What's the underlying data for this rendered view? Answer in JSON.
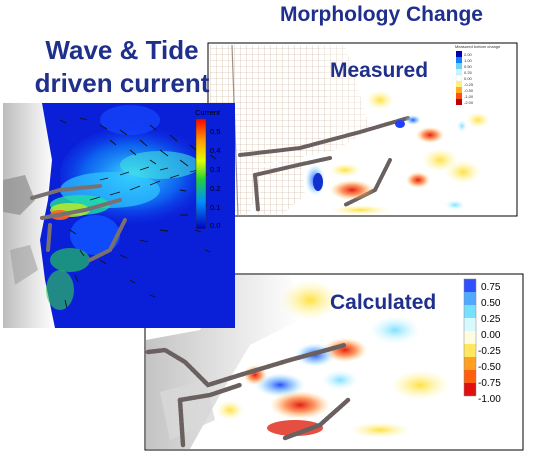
{
  "title": "Morphology Change",
  "wave_panel": {
    "line1": "Wave & Tide",
    "line2": "driven current",
    "colorbar_title": "Current",
    "colorbar_ticks": [
      "0.5",
      "0.4",
      "0.3",
      "0.2",
      "0.1",
      "0.0"
    ]
  },
  "measured_panel": {
    "label": "Measured",
    "legend_header": "Measured bottom change",
    "legend_ticks": [
      "2.00",
      "1.00",
      "0.50",
      "0.25",
      "0.00",
      "-0.25",
      "-0.50",
      "-1.00",
      "-2.00"
    ]
  },
  "calculated_panel": {
    "label": "Calculated",
    "legend_ticks": [
      "0.75",
      "0.50",
      "0.25",
      "0.00",
      "-0.25",
      "-0.50",
      "-0.75",
      "-1.00"
    ]
  },
  "colors": {
    "title": "#1f2f8c",
    "current_high": "#ff0000",
    "current_low": "#0000c0",
    "erosion": "#e03020",
    "deposition": "#2060ff"
  }
}
